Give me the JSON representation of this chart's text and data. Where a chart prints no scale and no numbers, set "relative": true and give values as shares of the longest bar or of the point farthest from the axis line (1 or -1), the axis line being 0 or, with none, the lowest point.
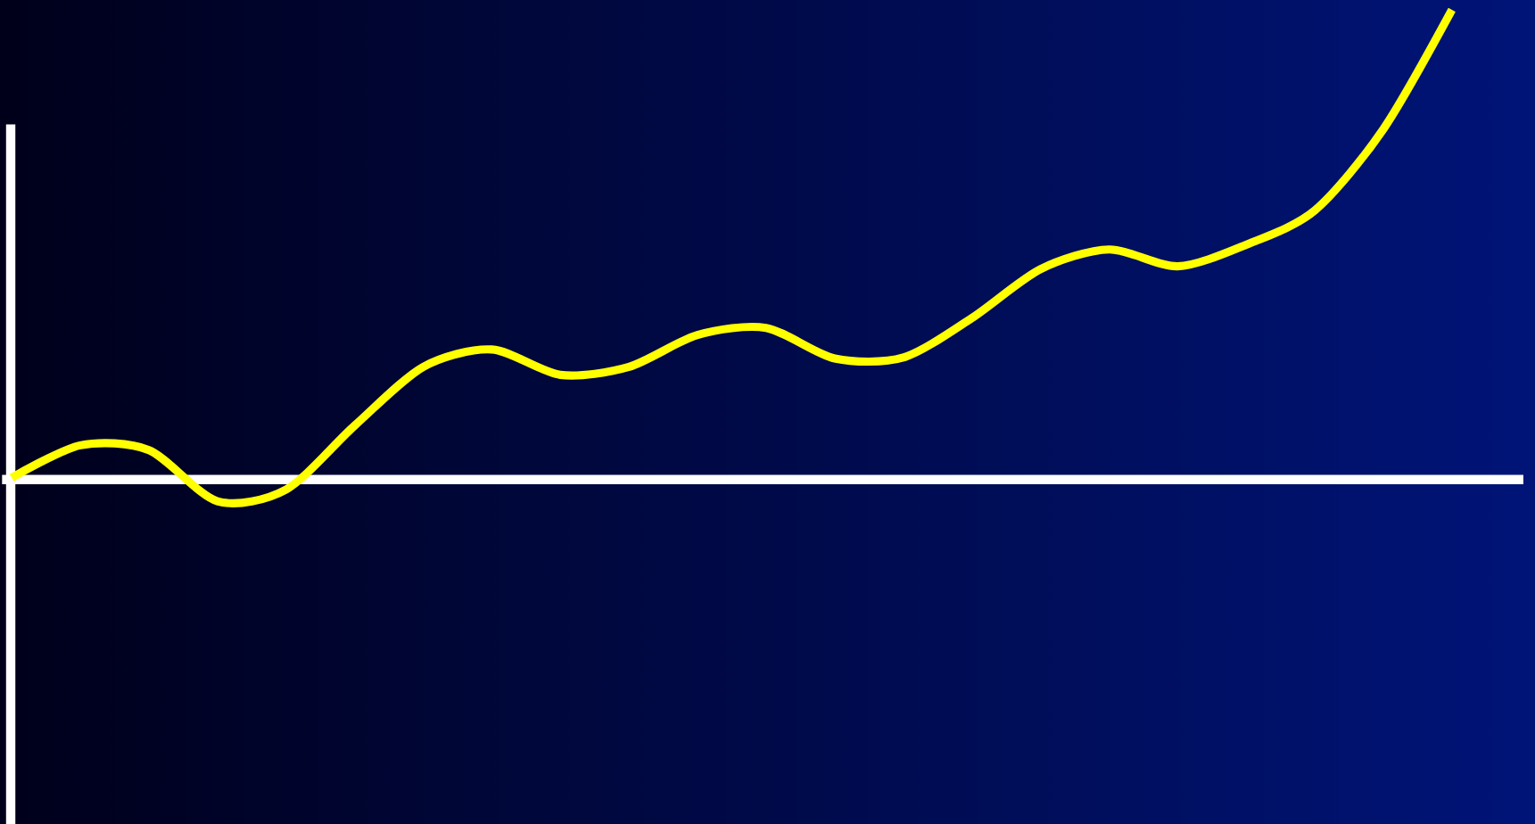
{
  "chart_data": {
    "type": "line",
    "relative": true,
    "categories": [
      null,
      null,
      null,
      null,
      null,
      null,
      null,
      null,
      null,
      null,
      null,
      null,
      null,
      null,
      null,
      null,
      null,
      null,
      null,
      null,
      null,
      null
    ],
    "series": [
      {
        "color": "#ffff00",
        "values": [
          0.004,
          0.073,
          0.063,
          -0.046,
          -0.021,
          0.115,
          0.24,
          0.277,
          0.223,
          0.24,
          0.308,
          0.323,
          0.258,
          0.26,
          0.344,
          0.448,
          0.49,
          0.454,
          0.5,
          0.573,
          0.746,
          1.0
        ]
      }
    ],
    "marker": "none",
    "line_style": "solid"
  }
}
